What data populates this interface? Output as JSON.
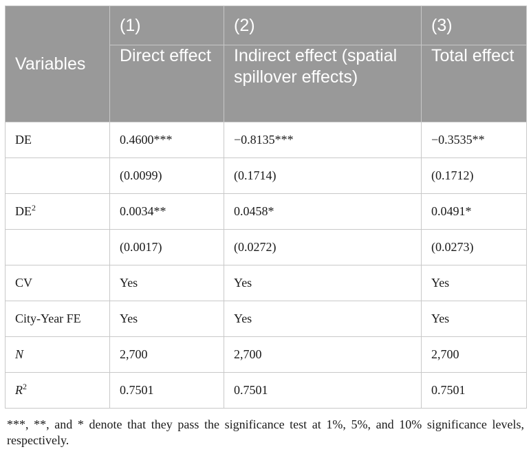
{
  "table": {
    "header": {
      "variables_label": "Variables",
      "columns": [
        {
          "number": "(1)",
          "label": "Direct effect"
        },
        {
          "number": "(2)",
          "label": "Indirect effect (spatial spillover effects)"
        },
        {
          "number": "(3)",
          "label": "Total effect"
        }
      ]
    },
    "rows": [
      {
        "variable": "DE",
        "sup": "",
        "cells": [
          "0.4600***",
          "−0.8135***",
          "−0.3535**"
        ]
      },
      {
        "variable": "",
        "sup": "",
        "cells": [
          "(0.0099)",
          "(0.1714)",
          "(0.1712)"
        ]
      },
      {
        "variable": "DE",
        "sup": "2",
        "cells": [
          "0.0034**",
          "0.0458*",
          "0.0491*"
        ]
      },
      {
        "variable": "",
        "sup": "",
        "cells": [
          "(0.0017)",
          "(0.0272)",
          "(0.0273)"
        ]
      },
      {
        "variable": "CV",
        "sup": "",
        "cells": [
          "Yes",
          "Yes",
          "Yes"
        ]
      },
      {
        "variable": "City-Year FE",
        "sup": "",
        "cells": [
          "Yes",
          "Yes",
          "Yes"
        ]
      },
      {
        "variable": "N",
        "sup": "",
        "cells": [
          "2,700",
          "2,700",
          "2,700"
        ]
      },
      {
        "variable": "R",
        "sup": "2",
        "cells": [
          "0.7501",
          "0.7501",
          "0.7501"
        ]
      }
    ]
  },
  "note": "***, **, and * denote that they pass the significance test at 1%, 5%, and 10% significance levels, respectively."
}
